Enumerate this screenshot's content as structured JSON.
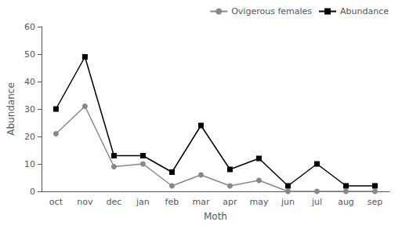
{
  "chart_data": {
    "type": "line",
    "xlabel": "Moth",
    "ylabel": "Abundance",
    "categories": [
      "oct",
      "nov",
      "dec",
      "jan",
      "feb",
      "mar",
      "apr",
      "may",
      "jun",
      "jul",
      "aug",
      "sep"
    ],
    "series": [
      {
        "name": "Ovigerous females",
        "color": "#888888",
        "marker": "circle",
        "values": [
          21,
          31,
          9,
          10,
          2,
          6,
          2,
          4,
          0,
          0,
          0,
          0
        ]
      },
      {
        "name": "Abundance",
        "color": "#000000",
        "marker": "square",
        "values": [
          30,
          49,
          13,
          13,
          7,
          24,
          8,
          12,
          2,
          10,
          2,
          2
        ]
      }
    ],
    "ylim": [
      0,
      60
    ],
    "yticks": [
      0,
      10,
      20,
      30,
      40,
      50,
      60
    ],
    "grid": false,
    "legend": "upper right"
  }
}
